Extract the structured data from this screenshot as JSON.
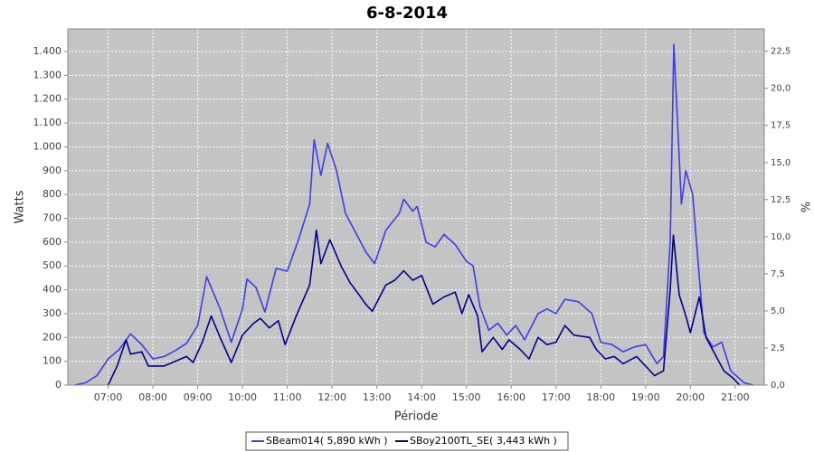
{
  "chart_data": {
    "type": "line",
    "title": "6-8-2014",
    "xlabel": "Période",
    "ylabel": "Watts",
    "y2label": "%",
    "xlim": [
      6.1,
      21.65
    ],
    "xticks": [
      {
        "value": 7,
        "label": "07:00"
      },
      {
        "value": 8,
        "label": "08:00"
      },
      {
        "value": 9,
        "label": "09:00"
      },
      {
        "value": 10,
        "label": "10:00"
      },
      {
        "value": 11,
        "label": "11:00"
      },
      {
        "value": 12,
        "label": "12:00"
      },
      {
        "value": 13,
        "label": "13:00"
      },
      {
        "value": 14,
        "label": "14:00"
      },
      {
        "value": 15,
        "label": "15:00"
      },
      {
        "value": 16,
        "label": "16:00"
      },
      {
        "value": 17,
        "label": "17:00"
      },
      {
        "value": 18,
        "label": "18:00"
      },
      {
        "value": 19,
        "label": "19:00"
      },
      {
        "value": 20,
        "label": "20:00"
      },
      {
        "value": 21,
        "label": "21:00"
      }
    ],
    "ylim": [
      0,
      1495
    ],
    "yticks": [
      0,
      100,
      200,
      300,
      400,
      500,
      600,
      700,
      800,
      900,
      {
        "value": 1000,
        "label": "1.000"
      },
      {
        "value": 1100,
        "label": "1.100"
      },
      {
        "value": 1200,
        "label": "1.200"
      },
      {
        "value": 1300,
        "label": "1.300"
      },
      {
        "value": 1400,
        "label": "1.400"
      }
    ],
    "y2lim": [
      0,
      24
    ],
    "y2ticks": [
      {
        "value": 0,
        "label": "0,0"
      },
      {
        "value": 2.5,
        "label": "2,5"
      },
      {
        "value": 5,
        "label": "5,0"
      },
      {
        "value": 7.5,
        "label": "7,5"
      },
      {
        "value": 10,
        "label": "10,0"
      },
      {
        "value": 12.5,
        "label": "12,5"
      },
      {
        "value": 15,
        "label": "15,0"
      },
      {
        "value": 17.5,
        "label": "17,5"
      },
      {
        "value": 20,
        "label": "20,0"
      },
      {
        "value": 22.5,
        "label": "22,5"
      }
    ],
    "grid": true,
    "legend": "bottom",
    "series": [
      {
        "name": "SBeam014( 5,890 kWh )",
        "color": "#3c3cf0",
        "x": [
          6.25,
          6.5,
          6.75,
          7.0,
          7.25,
          7.5,
          7.75,
          8.0,
          8.25,
          8.5,
          8.75,
          9.0,
          9.2,
          9.5,
          9.75,
          10.0,
          10.1,
          10.3,
          10.5,
          10.75,
          11.0,
          11.25,
          11.5,
          11.6,
          11.75,
          11.9,
          12.1,
          12.3,
          12.5,
          12.75,
          12.95,
          13.2,
          13.5,
          13.6,
          13.8,
          13.9,
          14.1,
          14.3,
          14.5,
          14.75,
          15.0,
          15.15,
          15.3,
          15.5,
          15.7,
          15.9,
          16.1,
          16.3,
          16.6,
          16.8,
          17.0,
          17.2,
          17.5,
          17.8,
          18.0,
          18.25,
          18.5,
          18.75,
          19.0,
          19.25,
          19.4,
          19.55,
          19.63,
          19.8,
          19.9,
          20.05,
          20.3,
          20.5,
          20.7,
          20.9,
          21.2,
          21.4
        ],
        "values": [
          0,
          10,
          40,
          110,
          150,
          215,
          170,
          110,
          120,
          145,
          175,
          250,
          455,
          320,
          180,
          320,
          445,
          410,
          307,
          490,
          478,
          610,
          760,
          1030,
          880,
          1015,
          900,
          720,
          650,
          560,
          510,
          650,
          720,
          780,
          730,
          750,
          600,
          580,
          632,
          590,
          520,
          500,
          330,
          230,
          260,
          210,
          250,
          190,
          300,
          320,
          300,
          360,
          350,
          300,
          180,
          170,
          140,
          160,
          170,
          90,
          120,
          600,
          1430,
          760,
          900,
          800,
          220,
          160,
          180,
          60,
          10,
          0
        ]
      },
      {
        "name": "SBoy2100TL_SE( 3,443 kWh )",
        "color": "#000090",
        "x": [
          7.0,
          7.2,
          7.4,
          7.5,
          7.75,
          7.9,
          8.25,
          8.5,
          8.75,
          8.9,
          9.1,
          9.3,
          9.5,
          9.75,
          10.0,
          10.25,
          10.4,
          10.6,
          10.8,
          10.95,
          11.2,
          11.5,
          11.65,
          11.75,
          11.95,
          12.2,
          12.4,
          12.6,
          12.75,
          12.9,
          13.2,
          13.4,
          13.6,
          13.8,
          14.0,
          14.25,
          14.5,
          14.75,
          14.9,
          15.05,
          15.25,
          15.35,
          15.6,
          15.8,
          15.95,
          16.2,
          16.4,
          16.6,
          16.8,
          17.0,
          17.2,
          17.4,
          17.75,
          17.9,
          18.1,
          18.3,
          18.5,
          18.8,
          19.0,
          19.2,
          19.4,
          19.55,
          19.62,
          19.75,
          19.9,
          20.0,
          20.2,
          20.35,
          20.55,
          20.75,
          20.95,
          21.1
        ],
        "values": [
          0,
          80,
          190,
          130,
          140,
          80,
          80,
          100,
          120,
          95,
          180,
          290,
          200,
          95,
          210,
          260,
          280,
          240,
          270,
          170,
          290,
          420,
          650,
          510,
          610,
          500,
          430,
          380,
          340,
          310,
          420,
          440,
          480,
          440,
          460,
          340,
          370,
          390,
          300,
          380,
          290,
          140,
          200,
          150,
          190,
          150,
          110,
          200,
          170,
          180,
          250,
          210,
          200,
          150,
          110,
          120,
          90,
          120,
          80,
          40,
          60,
          400,
          630,
          380,
          290,
          220,
          370,
          200,
          130,
          60,
          30,
          0
        ]
      }
    ]
  }
}
